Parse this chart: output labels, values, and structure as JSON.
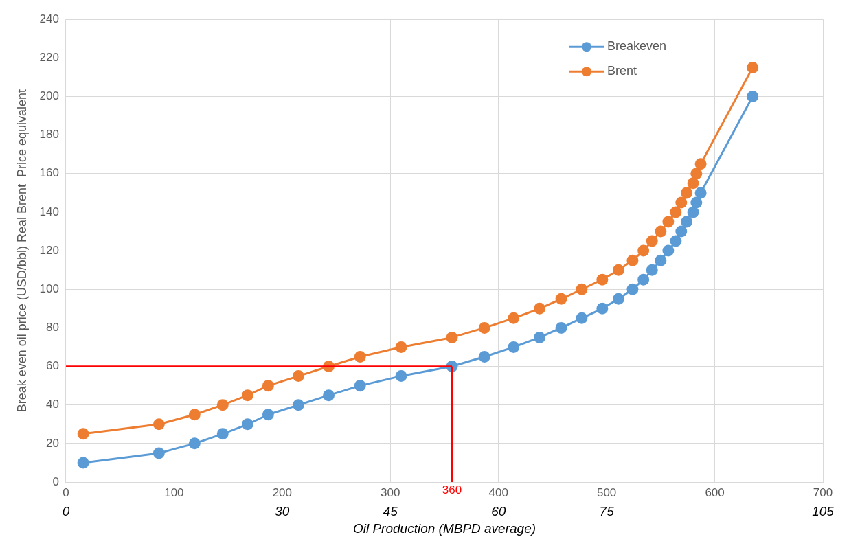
{
  "chart_data": {
    "type": "line",
    "xlabel": "Oil Production (MBPD average)",
    "ylabel": "Break even oil price (USD/bbl) Real Brent  Price equivalent",
    "xlim": [
      0,
      700
    ],
    "xticks": [
      0,
      100,
      200,
      300,
      400,
      500,
      600,
      700
    ],
    "x2lim": [
      0,
      105
    ],
    "x2ticks": [
      0,
      30,
      45,
      60,
      75,
      105
    ],
    "ylim": [
      0,
      240
    ],
    "yticks": [
      0,
      20,
      40,
      60,
      80,
      100,
      120,
      140,
      160,
      180,
      200,
      220,
      240
    ],
    "grid": true,
    "legend": "top right",
    "marker": "circle",
    "line_style": "solid",
    "x": [
      16,
      86,
      119,
      145,
      168,
      187,
      215,
      243,
      272,
      310,
      357,
      387,
      414,
      438,
      458,
      477,
      496,
      511,
      524,
      534,
      542,
      550,
      557,
      564,
      569,
      574,
      580,
      583,
      587,
      635
    ],
    "series": [
      {
        "name": "Breakeven",
        "color": "#5b9bd5",
        "values": [
          10,
          15,
          20,
          25,
          30,
          35,
          40,
          45,
          50,
          55,
          60,
          65,
          70,
          75,
          80,
          85,
          90,
          95,
          100,
          105,
          110,
          115,
          120,
          125,
          130,
          135,
          140,
          145,
          150,
          200
        ]
      },
      {
        "name": "Brent",
        "color": "#ed7d31",
        "values": [
          25,
          30,
          35,
          40,
          45,
          50,
          55,
          60,
          65,
          70,
          75,
          80,
          85,
          90,
          95,
          100,
          105,
          110,
          115,
          120,
          125,
          130,
          135,
          140,
          145,
          150,
          155,
          160,
          165,
          215
        ]
      }
    ],
    "ref_lines": [
      {
        "axis": "y",
        "value": 60,
        "color": "#ff0000"
      },
      {
        "axis": "x",
        "value": 357,
        "color": "#ff0000"
      }
    ],
    "annotations": [
      {
        "text": "360",
        "x": 357,
        "y": 0
      }
    ]
  }
}
